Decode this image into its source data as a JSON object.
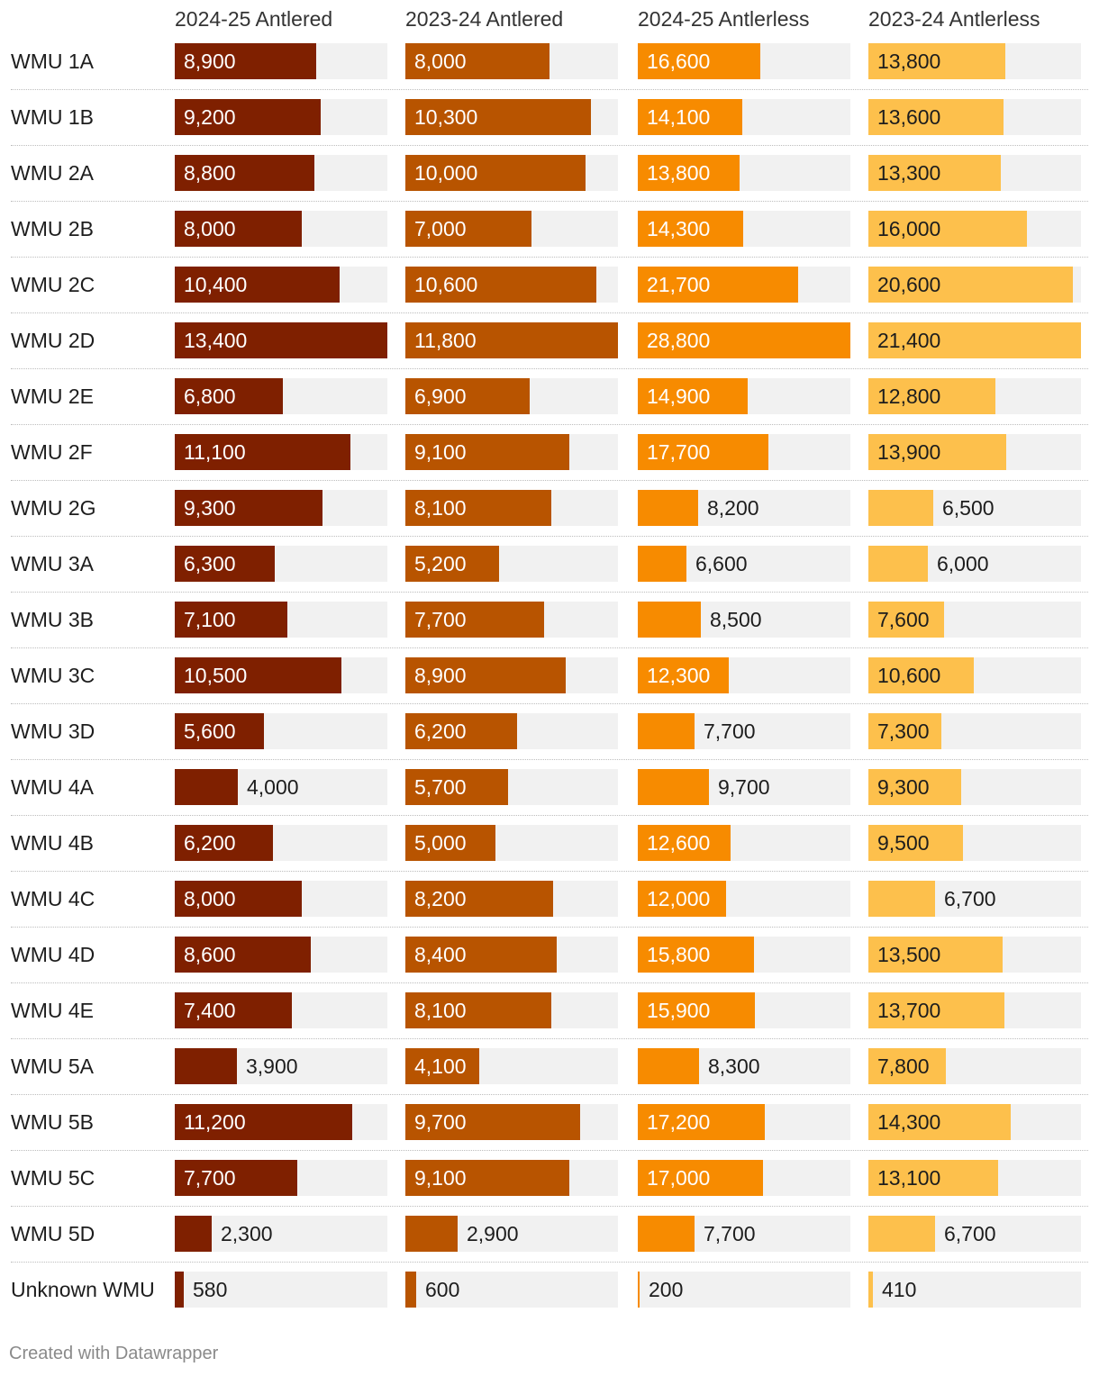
{
  "chart_data": {
    "type": "bar",
    "title": "",
    "xlabel": "",
    "ylabel": "",
    "categories": [
      "WMU 1A",
      "WMU 1B",
      "WMU 2A",
      "WMU 2B",
      "WMU 2C",
      "WMU 2D",
      "WMU 2E",
      "WMU 2F",
      "WMU 2G",
      "WMU 3A",
      "WMU 3B",
      "WMU 3C",
      "WMU 3D",
      "WMU 4A",
      "WMU 4B",
      "WMU 4C",
      "WMU 4D",
      "WMU 4E",
      "WMU 5A",
      "WMU 5B",
      "WMU 5C",
      "WMU 5D",
      "Unknown WMU"
    ],
    "series": [
      {
        "name": "2024-25 Antlered",
        "color": "#7f2000",
        "values": [
          8900,
          9200,
          8800,
          8000,
          10400,
          13400,
          6800,
          11100,
          9300,
          6300,
          7100,
          10500,
          5600,
          4000,
          6200,
          8000,
          8600,
          7400,
          3900,
          11200,
          7700,
          2300,
          580
        ],
        "labels": [
          "8,900",
          "9,200",
          "8,800",
          "8,000",
          "10,400",
          "13,400",
          "6,800",
          "11,100",
          "9,300",
          "6,300",
          "7,100",
          "10,500",
          "5,600",
          "4,000",
          "6,200",
          "8,000",
          "8,600",
          "7,400",
          "3,900",
          "11,200",
          "7,700",
          "2,300",
          "580"
        ]
      },
      {
        "name": "2023-24 Antlered",
        "color": "#b85400",
        "values": [
          8000,
          10300,
          10000,
          7000,
          10600,
          11800,
          6900,
          9100,
          8100,
          5200,
          7700,
          8900,
          6200,
          5700,
          5000,
          8200,
          8400,
          8100,
          4100,
          9700,
          9100,
          2900,
          600
        ],
        "labels": [
          "8,000",
          "10,300",
          "10,000",
          "7,000",
          "10,600",
          "11,800",
          "6,900",
          "9,100",
          "8,100",
          "5,200",
          "7,700",
          "8,900",
          "6,200",
          "5,700",
          "5,000",
          "8,200",
          "8,400",
          "8,100",
          "4,100",
          "9,700",
          "9,100",
          "2,900",
          "600"
        ]
      },
      {
        "name": "2024-25 Antlerless",
        "color": "#f78b00",
        "values": [
          16600,
          14100,
          13800,
          14300,
          21700,
          28800,
          14900,
          17700,
          8200,
          6600,
          8500,
          12300,
          7700,
          9700,
          12600,
          12000,
          15800,
          15900,
          8300,
          17200,
          17000,
          7700,
          200
        ],
        "labels": [
          "16,600",
          "14,100",
          "13,800",
          "14,300",
          "21,700",
          "28,800",
          "14,900",
          "17,700",
          "8,200",
          "6,600",
          "8,500",
          "12,300",
          "7,700",
          "9,700",
          "12,600",
          "12,000",
          "15,800",
          "15,900",
          "8,300",
          "17,200",
          "17,000",
          "7,700",
          "200"
        ]
      },
      {
        "name": "2023-24 Antlerless",
        "color": "#fdc04c",
        "values": [
          13800,
          13600,
          13300,
          16000,
          20600,
          21400,
          12800,
          13900,
          6500,
          6000,
          7600,
          10600,
          7300,
          9300,
          9500,
          6700,
          13500,
          13700,
          7800,
          14300,
          13100,
          6700,
          410
        ],
        "labels": [
          "13,800",
          "13,600",
          "13,300",
          "16,000",
          "20,600",
          "21,400",
          "12,800",
          "13,900",
          "6,500",
          "6,000",
          "7,600",
          "10,600",
          "7,300",
          "9,300",
          "9,500",
          "6,700",
          "13,500",
          "13,700",
          "7,800",
          "14,300",
          "13,100",
          "6,700",
          "410"
        ]
      }
    ]
  },
  "footer": "Created with Datawrapper"
}
